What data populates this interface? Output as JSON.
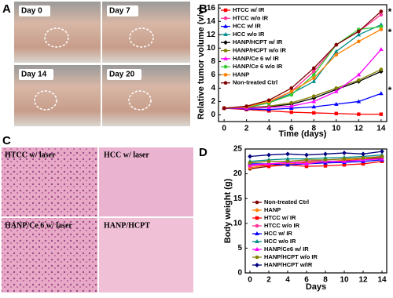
{
  "panels": [
    "A",
    "B",
    "C",
    "D"
  ],
  "photos": [
    "Day 0",
    "Day 7",
    "Day 14",
    "Day 20"
  ],
  "histology": [
    "HTCC w/ laser",
    "HCC w/ laser",
    "HANP/Ce 6 w/ laser",
    "HANP/HCPT"
  ],
  "chart_data": [
    {
      "type": "line",
      "x_label": "Time (days)",
      "y_label": "Relative tumor volume (v/v)",
      "x": [
        0,
        2,
        4,
        6,
        8,
        10,
        12,
        14
      ],
      "xlim": [
        -0.5,
        14.5
      ],
      "xticks": [
        0,
        2,
        4,
        6,
        8,
        10,
        12,
        14
      ],
      "ylim": [
        -1,
        16.5
      ],
      "yticks": [
        0,
        2,
        4,
        6,
        8,
        10,
        12,
        14,
        16
      ],
      "annotations": [
        "*",
        "*",
        "*"
      ],
      "series": [
        {
          "name": "HTCC w/ IR",
          "color": "#ff0000",
          "marker": "square",
          "values": [
            1,
            0.8,
            0.6,
            0.4,
            0.3,
            0.2,
            0.1,
            0.1
          ]
        },
        {
          "name": "HTCC w/o IR",
          "color": "#ff3399",
          "marker": "circle",
          "values": [
            1,
            1.1,
            1.8,
            3.5,
            6.5,
            10.5,
            12.5,
            15
          ]
        },
        {
          "name": "HCC w/ IR",
          "color": "#0000ff",
          "marker": "triangle",
          "values": [
            1,
            0.9,
            0.8,
            1,
            1.2,
            1.6,
            2,
            3.2
          ]
        },
        {
          "name": "HCC w/o IR",
          "color": "#008b8b",
          "marker": "triangle",
          "values": [
            1,
            1.1,
            1.8,
            3.2,
            5,
            9.5,
            12,
            13.5
          ]
        },
        {
          "name": "HANP/HCPT w/ IR",
          "color": "#000000",
          "marker": "diamond",
          "values": [
            1,
            1,
            1.2,
            1.6,
            2.5,
            3.8,
            5,
            6.5
          ]
        },
        {
          "name": "HANP/HCPT w/o IR",
          "color": "#808000",
          "marker": "circle",
          "values": [
            1,
            1.1,
            1.3,
            1.8,
            2.8,
            4,
            5.2,
            6.8
          ]
        },
        {
          "name": "HANP/Ce 6 w/ IR",
          "color": "#ff00ff",
          "marker": "triangle",
          "values": [
            1,
            1,
            1.1,
            1.3,
            2,
            3.5,
            6,
            9.8
          ]
        },
        {
          "name": "HANP/Ce 6 w/o IR",
          "color": "#33cc33",
          "marker": "circle",
          "values": [
            1,
            1.2,
            1.8,
            3,
            6,
            10.5,
            12.8,
            13.2
          ]
        },
        {
          "name": "HANP",
          "color": "#ff8000",
          "marker": "circle",
          "values": [
            1,
            1.2,
            2,
            3.5,
            5.5,
            9,
            11,
            12.8
          ]
        },
        {
          "name": "Non-treated Ctrl",
          "color": "#800000",
          "marker": "circle",
          "values": [
            1,
            1.3,
            2.2,
            4,
            7,
            10.5,
            12.5,
            15.5
          ]
        }
      ]
    },
    {
      "type": "line",
      "x_label": "Days",
      "y_label": "Body weight (g)",
      "x": [
        0,
        2,
        4,
        6,
        8,
        10,
        12,
        14
      ],
      "xlim": [
        -0.5,
        14.5
      ],
      "xticks": [
        0,
        2,
        4,
        6,
        8,
        10,
        12,
        14
      ],
      "ylim": [
        0,
        25
      ],
      "yticks": [
        0,
        5,
        10,
        15,
        20,
        25
      ],
      "series": [
        {
          "name": "Non-treated Ctrl",
          "color": "#800000",
          "marker": "circle",
          "values": [
            21,
            21.5,
            22,
            22.3,
            22.5,
            22.6,
            23,
            23.2
          ]
        },
        {
          "name": "HANP",
          "color": "#ff8000",
          "marker": "circle",
          "values": [
            21.2,
            21.8,
            22,
            22.4,
            22.3,
            22.8,
            23,
            23.5
          ]
        },
        {
          "name": "HTCC w/ IR",
          "color": "#ff0000",
          "marker": "square",
          "values": [
            22,
            21.5,
            21.8,
            21.5,
            21.6,
            21.8,
            22,
            22.5
          ]
        },
        {
          "name": "HTCC w/o IR",
          "color": "#ff3399",
          "marker": "circle",
          "values": [
            21.5,
            22,
            22.2,
            22.5,
            22.8,
            23,
            23.2,
            23.5
          ]
        },
        {
          "name": "HCC w/ IR",
          "color": "#0000ff",
          "marker": "triangle",
          "values": [
            22,
            22,
            21.8,
            22,
            22.2,
            22.3,
            22.5,
            22.8
          ]
        },
        {
          "name": "HCC w/o IR",
          "color": "#008b8b",
          "marker": "triangle",
          "values": [
            22.5,
            22.8,
            23,
            23,
            23.2,
            23.3,
            23.5,
            23.8
          ]
        },
        {
          "name": "HANP/Ce6 w/ IR",
          "color": "#ff00ff",
          "marker": "triangle",
          "values": [
            21.8,
            22,
            22.3,
            22,
            22.5,
            22.5,
            22.8,
            23
          ]
        },
        {
          "name": "HANP/HCPT w/o IR",
          "color": "#808000",
          "marker": "circle",
          "values": [
            22.2,
            22.5,
            22.5,
            22.8,
            22.8,
            23,
            23.2,
            23.5
          ]
        },
        {
          "name": "HANP/HCPT w/IR",
          "color": "#000080",
          "marker": "diamond",
          "values": [
            23.5,
            23.8,
            24,
            23.8,
            24,
            24.2,
            24,
            24.5
          ]
        }
      ]
    }
  ]
}
